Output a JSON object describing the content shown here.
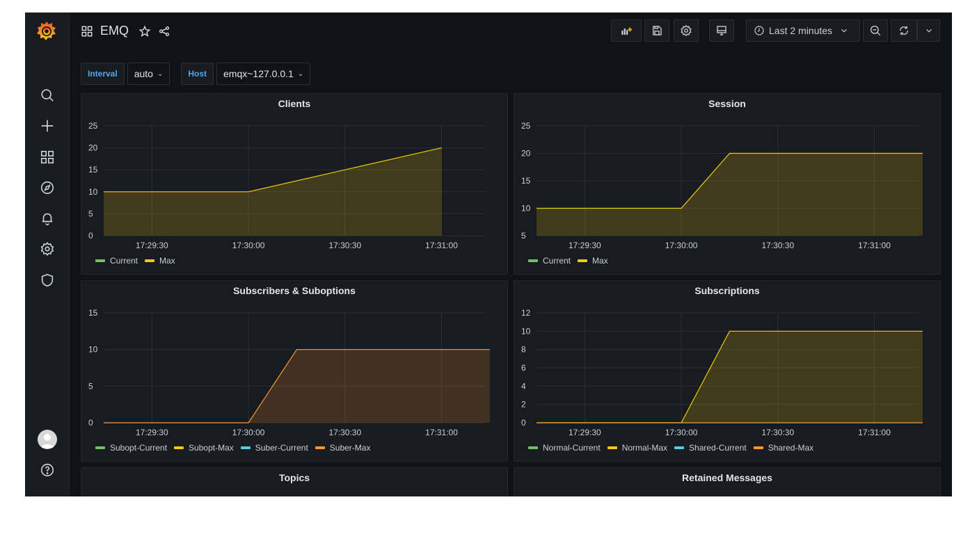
{
  "dashboard": {
    "title": "EMQ"
  },
  "toolbar": {
    "time_range": "Last 2 minutes"
  },
  "variables": [
    {
      "label": "Interval",
      "value": "auto"
    },
    {
      "label": "Host",
      "value": "emqx~127.0.0.1"
    }
  ],
  "colors": {
    "green": "#73bf69",
    "yellow": "#f2cc0c",
    "blue": "#5ac8e3",
    "orange": "#ff9830"
  },
  "panels": [
    {
      "title": "Clients",
      "legend": [
        {
          "name": "Current",
          "color": "#73bf69"
        },
        {
          "name": "Max",
          "color": "#f2cc0c"
        }
      ]
    },
    {
      "title": "Session",
      "legend": [
        {
          "name": "Current",
          "color": "#73bf69"
        },
        {
          "name": "Max",
          "color": "#f2cc0c"
        }
      ]
    },
    {
      "title": "Subscribers & Suboptions",
      "legend": [
        {
          "name": "Subopt-Current",
          "color": "#73bf69"
        },
        {
          "name": "Subopt-Max",
          "color": "#f2cc0c"
        },
        {
          "name": "Suber-Current",
          "color": "#5ac8e3"
        },
        {
          "name": "Suber-Max",
          "color": "#ff9830"
        }
      ]
    },
    {
      "title": "Subscriptions",
      "legend": [
        {
          "name": "Normal-Current",
          "color": "#73bf69"
        },
        {
          "name": "Normal-Max",
          "color": "#f2cc0c"
        },
        {
          "name": "Shared-Current",
          "color": "#5ac8e3"
        },
        {
          "name": "Shared-Max",
          "color": "#ff9830"
        }
      ]
    },
    {
      "title": "Topics",
      "legend": []
    },
    {
      "title": "Retained Messages",
      "legend": []
    }
  ],
  "chart_data": [
    {
      "type": "area",
      "title": "Clients",
      "x": [
        "17:29:15",
        "17:30:00",
        "17:31:00"
      ],
      "xticks": [
        "17:29:30",
        "17:30:00",
        "17:30:30",
        "17:31:00"
      ],
      "ylim": [
        0,
        25
      ],
      "yticks": [
        0,
        5,
        10,
        15,
        20,
        25
      ],
      "series": [
        {
          "name": "Max",
          "color": "#f2cc0c",
          "values": [
            10,
            10,
            20
          ]
        }
      ]
    },
    {
      "type": "area",
      "title": "Session",
      "x": [
        "17:29:15",
        "17:30:00",
        "17:30:15",
        "17:31:15"
      ],
      "xticks": [
        "17:29:30",
        "17:30:00",
        "17:30:30",
        "17:31:00"
      ],
      "ylim": [
        5,
        25
      ],
      "yticks": [
        5,
        10,
        15,
        20,
        25
      ],
      "series": [
        {
          "name": "Max",
          "color": "#f2cc0c",
          "values": [
            10,
            10,
            20,
            20
          ]
        }
      ]
    },
    {
      "type": "area",
      "title": "Subscribers & Suboptions",
      "x": [
        "17:29:15",
        "17:30:00",
        "17:30:15",
        "17:31:15"
      ],
      "xticks": [
        "17:29:30",
        "17:30:00",
        "17:30:30",
        "17:31:00"
      ],
      "ylim": [
        0,
        15
      ],
      "yticks": [
        0,
        5,
        10,
        15
      ],
      "series": [
        {
          "name": "Suber-Max",
          "color": "#ff9830",
          "values": [
            0,
            0,
            10,
            10
          ]
        }
      ]
    },
    {
      "type": "area",
      "title": "Subscriptions",
      "x": [
        "17:29:15",
        "17:30:00",
        "17:30:15",
        "17:31:15"
      ],
      "xticks": [
        "17:29:30",
        "17:30:00",
        "17:30:30",
        "17:31:00"
      ],
      "ylim": [
        0,
        12
      ],
      "yticks": [
        0,
        2,
        4,
        6,
        8,
        10,
        12
      ],
      "series": [
        {
          "name": "Normal-Max",
          "color": "#f2cc0c",
          "values": [
            0,
            0,
            10,
            10
          ]
        },
        {
          "name": "Shared-Max",
          "color": "#ff9830",
          "values": [
            0,
            0,
            0,
            0
          ]
        }
      ]
    }
  ]
}
